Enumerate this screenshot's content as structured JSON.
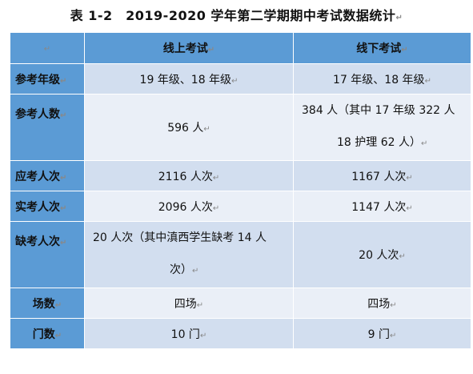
{
  "title": "表 1-2　2019-2020 学年第二学期期中考试数据统计",
  "columns": [
    "",
    "线上考试",
    "线下考试"
  ],
  "rows": [
    {
      "label": "参考年级",
      "online": "19 年级、18 年级",
      "offline": "17 年级、18 年级"
    },
    {
      "label": "参考人数",
      "online": "596 人",
      "offline_line1": "384 人（其中 17 年级 322 人",
      "offline_line2": "18 护理 62 人）"
    },
    {
      "label": "应考人次",
      "online": "2116 人次",
      "offline": "1167 人次"
    },
    {
      "label": "实考人次",
      "online": "2096 人次",
      "offline": "1147 人次"
    },
    {
      "label": "缺考人次",
      "online_line1": "20 人次（其中滇西学生缺考 14 人",
      "online_line2": "次）",
      "offline": "20 人次"
    },
    {
      "label": "场数",
      "online": "四场",
      "offline": "四场"
    },
    {
      "label": "门数",
      "online": "10 门",
      "offline": "9 门"
    }
  ]
}
